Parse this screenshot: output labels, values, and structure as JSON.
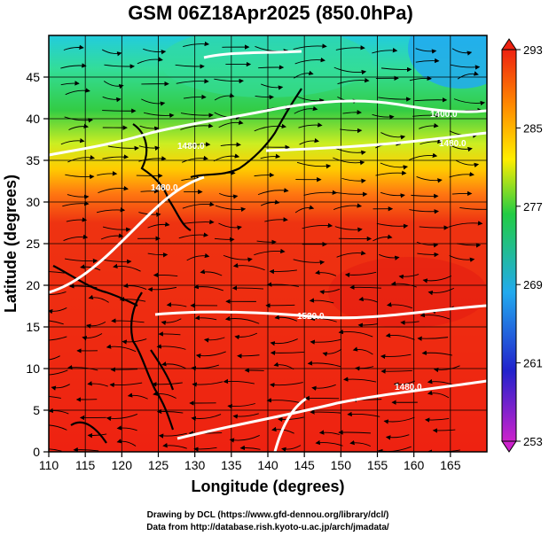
{
  "title": "GSM 06Z18Apr2025 (850.0hPa)",
  "x_axis": {
    "label": "Longitude (degrees)",
    "range": [
      110,
      170
    ],
    "ticks": [
      "110",
      "115",
      "120",
      "125",
      "130",
      "135",
      "140",
      "145",
      "150",
      "155",
      "160",
      "165"
    ]
  },
  "y_axis": {
    "label": "Latitude  (degrees)",
    "range": [
      0,
      50
    ],
    "ticks": [
      "0",
      "5",
      "10",
      "15",
      "20",
      "25",
      "30",
      "35",
      "40",
      "45"
    ]
  },
  "colorbar": {
    "ticks": [
      "253",
      "261",
      "269",
      "277",
      "285",
      "293"
    ],
    "min": 253,
    "max": 293,
    "colors": [
      "#cc22cc",
      "#2222cc",
      "#22aaee",
      "#22cc44",
      "#ffee00",
      "#ff8800",
      "#ee2211"
    ]
  },
  "contour_labels": [
    "1400.0",
    "1480.0",
    "1480.0",
    "1480.0",
    "1520.0",
    "1480.0"
  ],
  "credits": {
    "line1": "Drawing by DCL (https://www.gfd-dennou.org/library/dcl/)",
    "line2": "Data from http://database.rish.kyoto-u.ac.jp/arch/jmadata/"
  }
}
